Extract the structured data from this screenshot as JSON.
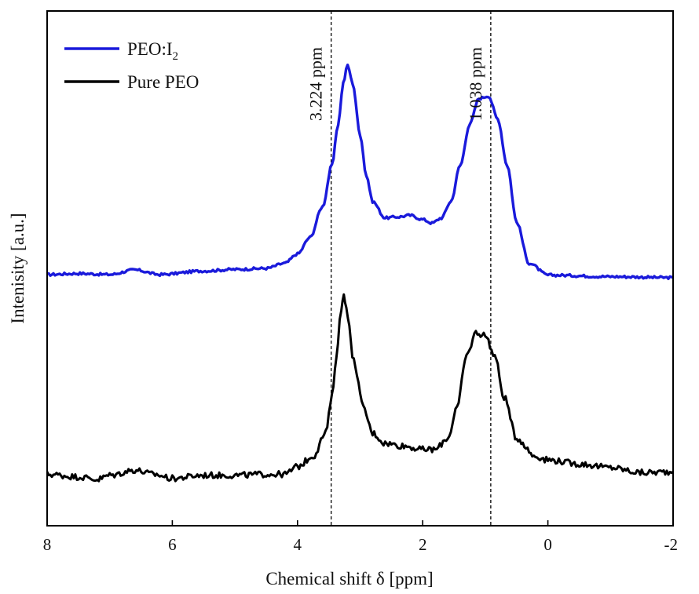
{
  "chart_data": {
    "type": "line",
    "xlabel": "Chemical shift δ [ppm]",
    "ylabel": "Intenisity [a.u.]",
    "xlim": [
      8,
      -2
    ],
    "ylim": [
      0,
      1
    ],
    "x_ticks": [
      "8",
      "6",
      "4",
      "2",
      "0",
      "-2"
    ],
    "x_tick_values": [
      8,
      6,
      4,
      2,
      0,
      -2
    ],
    "grid": false,
    "legend_position": "top-left",
    "series": [
      {
        "name": "PEO:I2",
        "legend_main": "PEO:I",
        "legend_sub": "2",
        "color": "#1a1adb",
        "points": [
          [
            8.0,
            0.488
          ],
          [
            7.5,
            0.49
          ],
          [
            7.0,
            0.488
          ],
          [
            6.6,
            0.497
          ],
          [
            6.2,
            0.488
          ],
          [
            5.5,
            0.495
          ],
          [
            5.0,
            0.498
          ],
          [
            4.5,
            0.5
          ],
          [
            4.2,
            0.51
          ],
          [
            4.0,
            0.528
          ],
          [
            3.8,
            0.56
          ],
          [
            3.6,
            0.62
          ],
          [
            3.45,
            0.7
          ],
          [
            3.35,
            0.78
          ],
          [
            3.27,
            0.86
          ],
          [
            3.2,
            0.895
          ],
          [
            3.12,
            0.86
          ],
          [
            3.0,
            0.76
          ],
          [
            2.9,
            0.68
          ],
          [
            2.8,
            0.63
          ],
          [
            2.6,
            0.598
          ],
          [
            2.4,
            0.6
          ],
          [
            2.2,
            0.603
          ],
          [
            2.0,
            0.595
          ],
          [
            1.85,
            0.588
          ],
          [
            1.7,
            0.598
          ],
          [
            1.55,
            0.63
          ],
          [
            1.4,
            0.7
          ],
          [
            1.25,
            0.78
          ],
          [
            1.1,
            0.83
          ],
          [
            0.95,
            0.835
          ],
          [
            0.8,
            0.79
          ],
          [
            0.65,
            0.7
          ],
          [
            0.5,
            0.59
          ],
          [
            0.3,
            0.51
          ],
          [
            0.0,
            0.487
          ],
          [
            -1.0,
            0.484
          ],
          [
            -2.0,
            0.482
          ]
        ]
      },
      {
        "name": "Pure PEO",
        "legend_main": "Pure PEO",
        "legend_sub": "",
        "color": "#000000",
        "points": [
          [
            8.0,
            0.1
          ],
          [
            7.5,
            0.095
          ],
          [
            7.2,
            0.09
          ],
          [
            7.0,
            0.098
          ],
          [
            6.6,
            0.108
          ],
          [
            6.3,
            0.1
          ],
          [
            6.0,
            0.092
          ],
          [
            5.5,
            0.098
          ],
          [
            5.0,
            0.098
          ],
          [
            4.5,
            0.1
          ],
          [
            4.2,
            0.1
          ],
          [
            4.0,
            0.115
          ],
          [
            3.75,
            0.135
          ],
          [
            3.55,
            0.18
          ],
          [
            3.45,
            0.25
          ],
          [
            3.38,
            0.33
          ],
          [
            3.3,
            0.42
          ],
          [
            3.26,
            0.455
          ],
          [
            3.22,
            0.42
          ],
          [
            3.1,
            0.32
          ],
          [
            2.95,
            0.23
          ],
          [
            2.8,
            0.18
          ],
          [
            2.6,
            0.16
          ],
          [
            2.3,
            0.155
          ],
          [
            2.0,
            0.148
          ],
          [
            1.8,
            0.148
          ],
          [
            1.6,
            0.17
          ],
          [
            1.45,
            0.23
          ],
          [
            1.3,
            0.33
          ],
          [
            1.15,
            0.375
          ],
          [
            1.0,
            0.37
          ],
          [
            0.85,
            0.33
          ],
          [
            0.7,
            0.25
          ],
          [
            0.5,
            0.17
          ],
          [
            0.2,
            0.135
          ],
          [
            0.0,
            0.128
          ],
          [
            -0.5,
            0.12
          ],
          [
            -1.0,
            0.113
          ],
          [
            -1.5,
            0.103
          ],
          [
            -2.0,
            0.105
          ]
        ]
      }
    ],
    "annotations": [
      {
        "x": 3.224,
        "label": "3.224 ppm"
      },
      {
        "x": 1.038,
        "label": "1.038 ppm"
      }
    ]
  }
}
